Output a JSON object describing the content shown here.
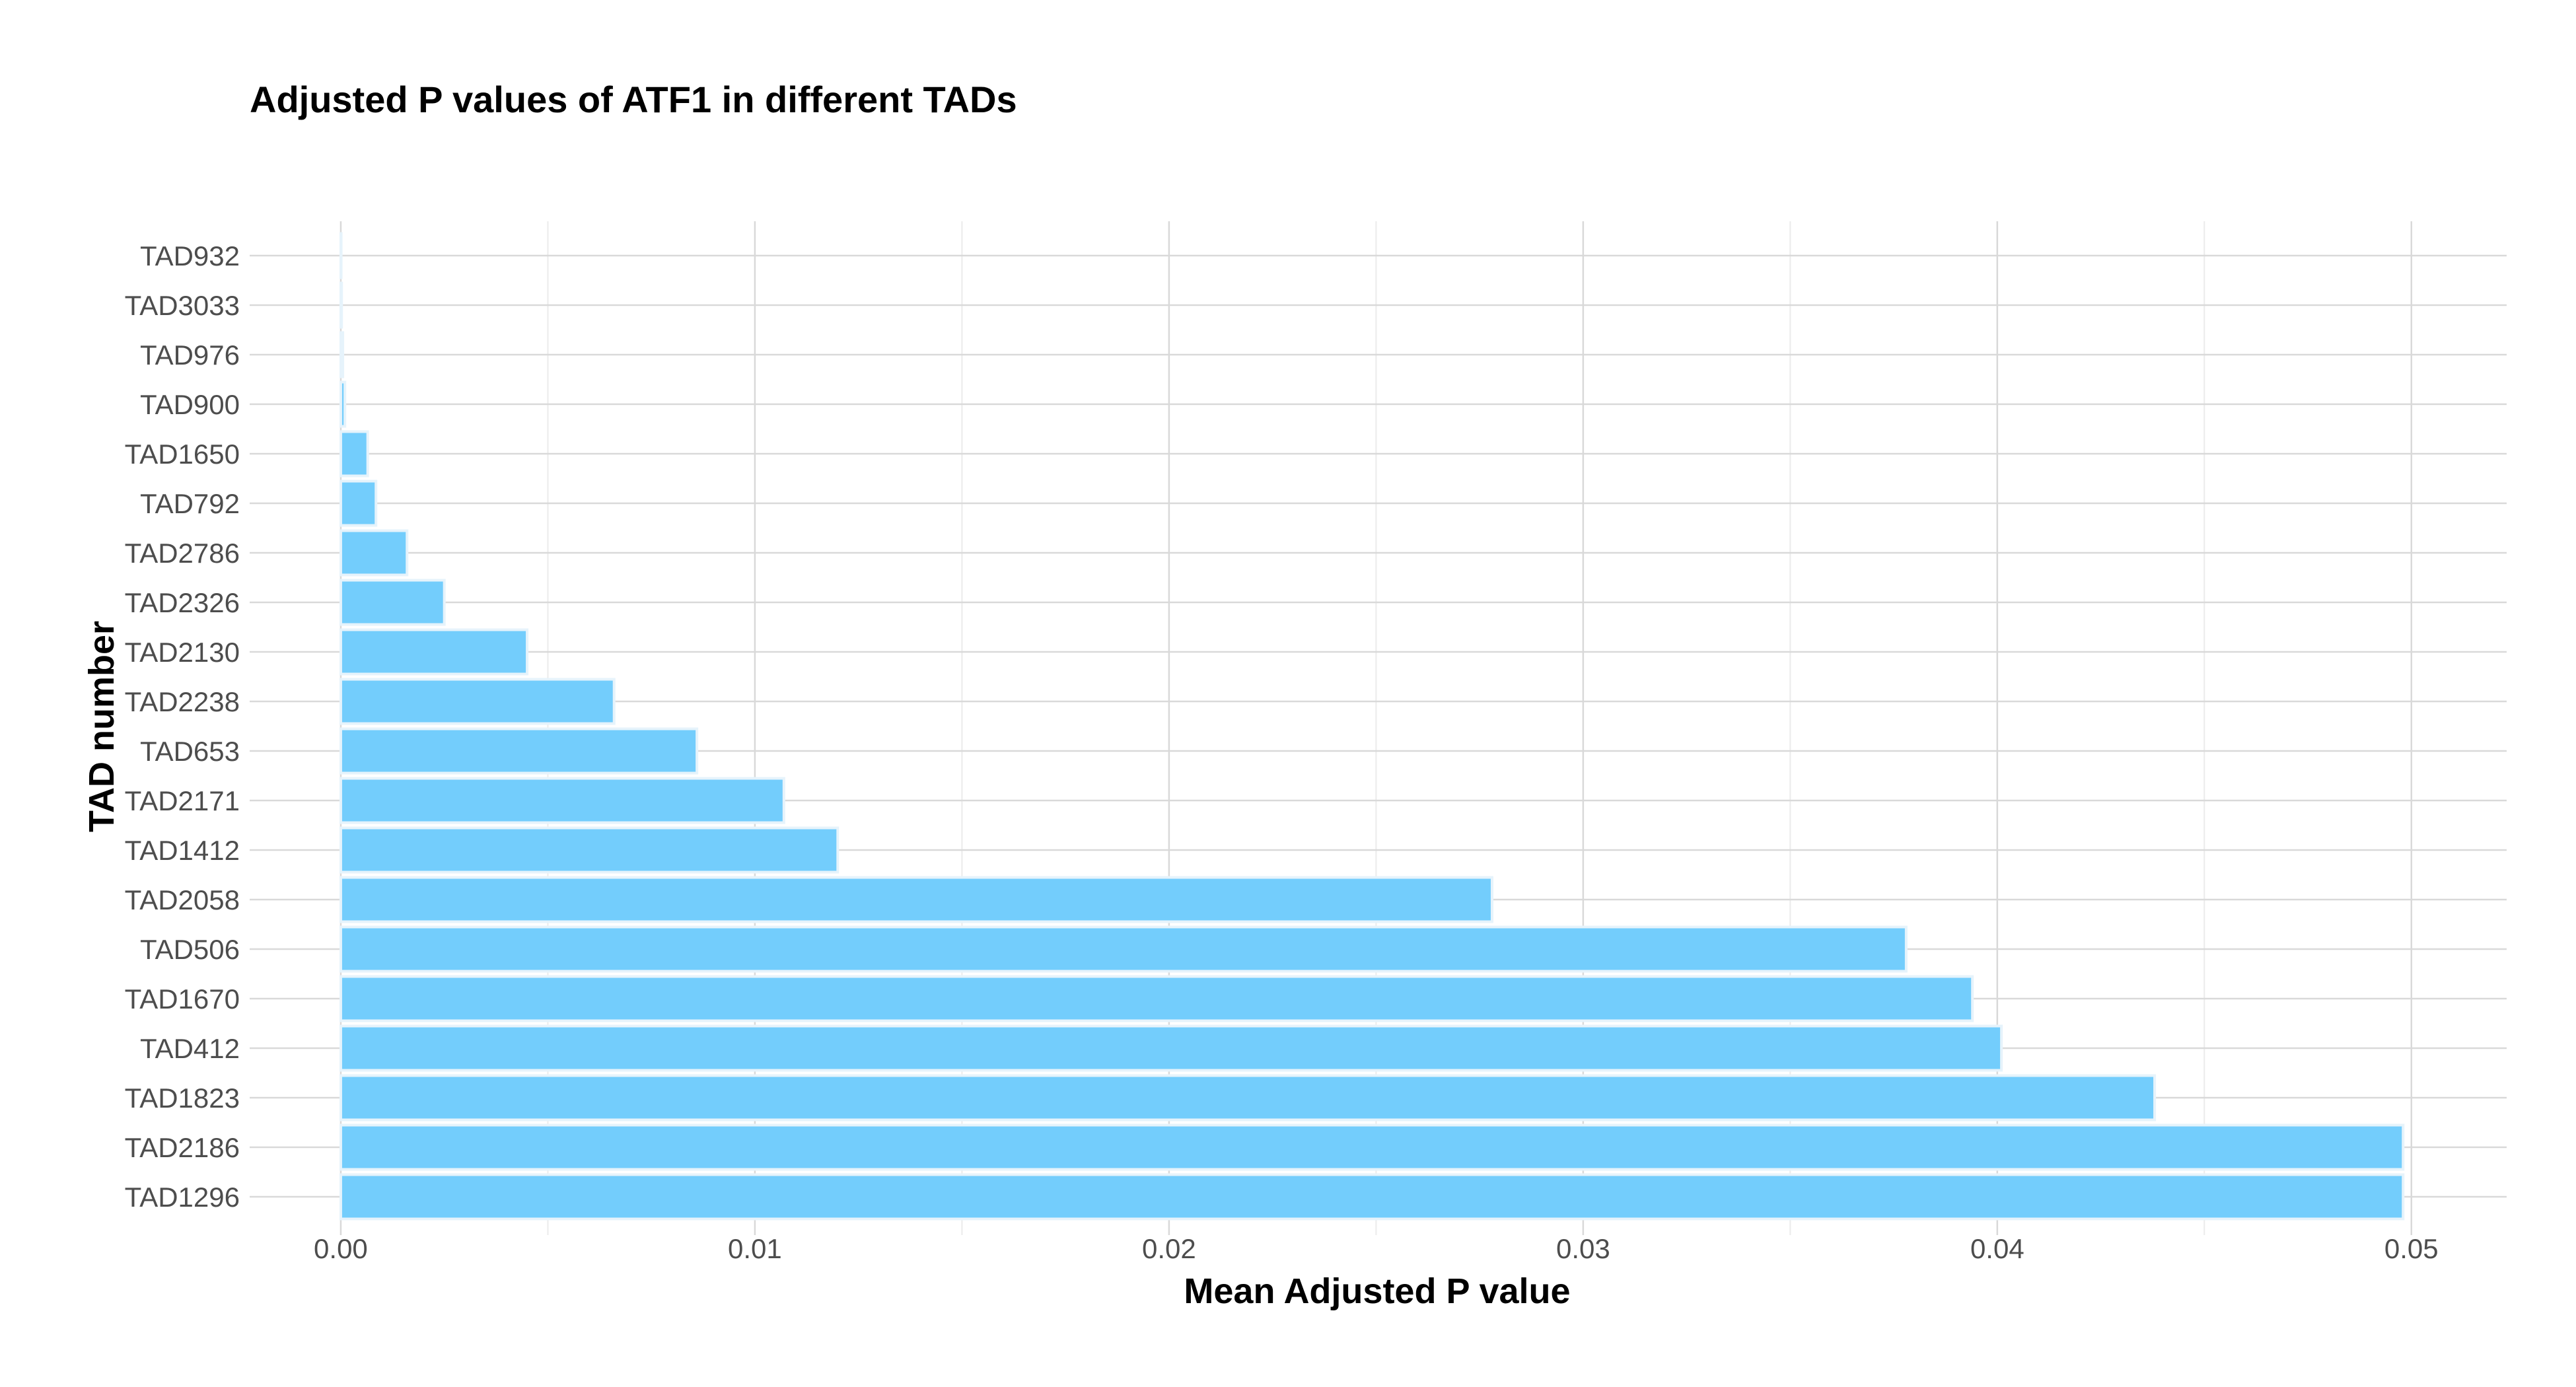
{
  "chart_data": {
    "type": "bar",
    "orientation": "horizontal",
    "title": "Adjusted P values of ATF1 in different TADs",
    "xlabel": "Mean Adjusted P value",
    "ylabel": "TAD number",
    "categories": [
      "TAD932",
      "TAD3033",
      "TAD976",
      "TAD900",
      "TAD1650",
      "TAD792",
      "TAD2786",
      "TAD2326",
      "TAD2130",
      "TAD2238",
      "TAD653",
      "TAD2171",
      "TAD1412",
      "TAD2058",
      "TAD506",
      "TAD1670",
      "TAD412",
      "TAD1823",
      "TAD2186",
      "TAD1296"
    ],
    "values": [
      1e-05,
      2e-05,
      5e-05,
      0.0001,
      0.00065,
      0.00085,
      0.0016,
      0.0025,
      0.0045,
      0.0066,
      0.0086,
      0.0107,
      0.012,
      0.0278,
      0.0378,
      0.0394,
      0.0401,
      0.0438,
      0.0498,
      0.0498
    ],
    "xlim": [
      -0.0022,
      0.0523
    ],
    "xticks": [
      "0.00",
      "0.01",
      "0.02",
      "0.03",
      "0.04",
      "0.05"
    ],
    "xtick_values": [
      0,
      0.01,
      0.02,
      0.03,
      0.04,
      0.05
    ],
    "grid": true,
    "legend": "none",
    "colors": {
      "bar_fill": "#73CDFC",
      "bar_stroke": "#E6F3FB",
      "grid_major": "#D9D9D9",
      "grid_minor": "#EBEBEB"
    }
  }
}
